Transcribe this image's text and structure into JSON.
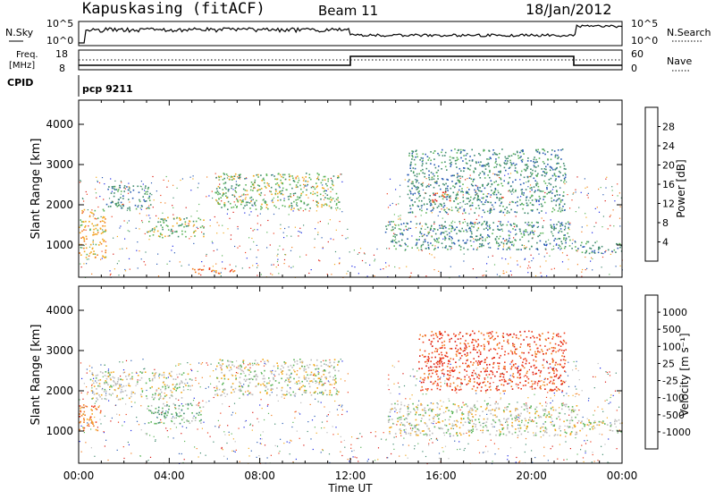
{
  "header": {
    "station": "Kapuskasing (fitACF)",
    "beam": "Beam 11",
    "date": "18/Jan/2012"
  },
  "status_panels": {
    "nsky_label": "N.Sky",
    "nsearch_label": "N.Search",
    "freq_label_1": "Freq.",
    "freq_label_2": "[MHz]",
    "nave_label": "Nave",
    "cpid_label": "CPID",
    "cpid_value": "pcp 9211",
    "noise_left_ticks": [
      "10^5",
      "10^0"
    ],
    "noise_right_ticks": [
      "10^5",
      "10^0"
    ],
    "freq_left_ticks": [
      "18",
      "8"
    ],
    "freq_right_ticks": [
      "60",
      "0"
    ]
  },
  "chart_data": [
    {
      "type": "heatmap",
      "panel": "power",
      "ylabel": "Slant Range [km]",
      "yticks": [
        "1000",
        "2000",
        "3000",
        "4000"
      ],
      "ylim": [
        200,
        4600
      ],
      "colorbar_label": "Power [dB]",
      "colorbar_ticks": [
        "4",
        "8",
        "12",
        "16",
        "20",
        "24",
        "28"
      ],
      "colors": [
        "#1b27e6",
        "#2a5cb3",
        "#3f8a6e",
        "#5cb55a",
        "#f2a91d",
        "#f27d1e",
        "#ee3c1c",
        "#d8140e"
      ],
      "echo_regions": [
        {
          "x0": 0.0,
          "x1": 1.2,
          "r0": 700,
          "r1": 1900,
          "level": 4
        },
        {
          "x0": 1.2,
          "x1": 3.2,
          "r0": 1900,
          "r1": 2500,
          "level": 2
        },
        {
          "x0": 3.0,
          "x1": 5.5,
          "r0": 1200,
          "r1": 1700,
          "level": 3
        },
        {
          "x0": 6.0,
          "x1": 11.5,
          "r0": 1900,
          "r1": 2800,
          "level": 3
        },
        {
          "x0": 5.0,
          "x1": 7.0,
          "r0": 300,
          "r1": 450,
          "level": 5
        },
        {
          "x0": 13.5,
          "x1": 21.8,
          "r0": 900,
          "r1": 1600,
          "level": 2
        },
        {
          "x0": 14.5,
          "x1": 21.5,
          "r0": 1800,
          "r1": 3400,
          "level": 2
        },
        {
          "x0": 15.6,
          "x1": 16.4,
          "r0": 2050,
          "r1": 2350,
          "level": 6
        },
        {
          "x0": 21.9,
          "x1": 24.0,
          "r0": 800,
          "r1": 1100,
          "level": 2
        }
      ]
    },
    {
      "type": "heatmap",
      "panel": "velocity",
      "ylabel": "Slant Range [km]",
      "xlabel": "Time UT",
      "xticks": [
        "00:00",
        "04:00",
        "08:00",
        "12:00",
        "16:00",
        "20:00",
        "00:00"
      ],
      "xlim": [
        0,
        24
      ],
      "yticks": [
        "1000",
        "2000",
        "3000",
        "4000"
      ],
      "ylim": [
        200,
        4600
      ],
      "colorbar_label": "Velocity [m s⁻¹]",
      "colorbar_ticks": [
        "1000",
        "500",
        "100",
        "25",
        "-25",
        "-100",
        "-500",
        "-1000"
      ],
      "colors": [
        "#1b27e6",
        "#2a5cb3",
        "#3f8a6e",
        "#5cb55a",
        "#bdbdbd",
        "#f2a91d",
        "#f27d1e",
        "#ee3c1c",
        "#d8140e"
      ],
      "echo_regions": [
        {
          "x0": 0.0,
          "x1": 1.0,
          "r0": 1000,
          "r1": 1700,
          "level": 6
        },
        {
          "x0": 0.5,
          "x1": 5.0,
          "r0": 1800,
          "r1": 2500,
          "level": 4
        },
        {
          "x0": 3.0,
          "x1": 5.5,
          "r0": 1200,
          "r1": 1700,
          "level": 3
        },
        {
          "x0": 6.0,
          "x1": 11.5,
          "r0": 1900,
          "r1": 2800,
          "level": 4
        },
        {
          "x0": 13.5,
          "x1": 22.0,
          "r0": 900,
          "r1": 1700,
          "level": 4
        },
        {
          "x0": 15.0,
          "x1": 21.5,
          "r0": 2000,
          "r1": 3500,
          "level": 7
        },
        {
          "x0": 22.0,
          "x1": 24.0,
          "r0": 1000,
          "r1": 1300,
          "level": 4
        }
      ]
    }
  ]
}
